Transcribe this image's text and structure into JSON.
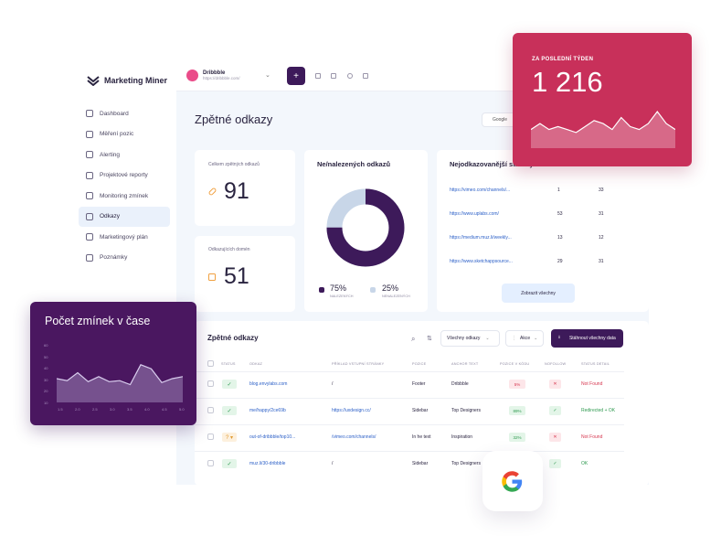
{
  "brand": {
    "name": "Marketing Miner"
  },
  "sidebar": {
    "items": [
      {
        "label": "Dashboard",
        "icon": "dashboard-icon",
        "active": false
      },
      {
        "label": "Měření pozic",
        "icon": "position-icon",
        "active": false
      },
      {
        "label": "Alerting",
        "icon": "bell-icon",
        "active": false
      },
      {
        "label": "Projektové reporty",
        "icon": "report-icon",
        "active": false
      },
      {
        "label": "Monitoring zmínek",
        "icon": "chat-icon",
        "active": false
      },
      {
        "label": "Odkazy",
        "icon": "link-icon",
        "active": true
      },
      {
        "label": "Marketingový plán",
        "icon": "calendar-icon",
        "active": false
      },
      {
        "label": "Poznámky",
        "icon": "note-icon",
        "active": false
      }
    ]
  },
  "topbar": {
    "project_name": "Dribbble",
    "project_url": "https://dribbble.com/",
    "add_label": "+"
  },
  "page": {
    "title": "Zpětné odkazy",
    "engine": "Google"
  },
  "stats": {
    "total_label": "Celkem zpětných odkazů",
    "total_value": "91",
    "domains_label": "Odkazujících domén",
    "domains_value": "51"
  },
  "donut": {
    "title": "Ne/nalezených odkazů",
    "found_pct": "75%",
    "found_label": "NALEZENÝCH",
    "notfound_pct": "25%",
    "notfound_label": "NENALEZENÝCH",
    "found_fraction": 0.75,
    "colors": {
      "found": "#3d1a5a",
      "notfound": "#c8d6e8"
    }
  },
  "top_links": {
    "title": "Nejodkazovanější stránky",
    "rows": [
      {
        "url": "https://vimeo.com/channels/...",
        "a": "1",
        "b": "33"
      },
      {
        "url": "https://www.uplabs.com/",
        "a": "53",
        "b": "31"
      },
      {
        "url": "https://medium.muz.li/weekly...",
        "a": "13",
        "b": "12"
      },
      {
        "url": "https://www.sketchappsource...",
        "a": "29",
        "b": "31"
      }
    ],
    "show_all": "Zobrazit všechny"
  },
  "backlinks": {
    "title": "Zpětné odkazy",
    "filter_all": "Všechny odkazy",
    "filter_more": "Akce",
    "download": "Stáhnout všechny data",
    "headers": [
      "STATUS",
      "ODKAZ",
      "PŘÍKLAD VSTUPNÍ STRÁNKY",
      "POZICE",
      "ANCHOR TEXT",
      "POZICE V KÓDU",
      "NOFOLLOW",
      "STATUS DETAIL"
    ],
    "rows": [
      {
        "status": "ok",
        "status_glyph": "✓",
        "link": "blog.envylabs.com",
        "entry": "/",
        "position": "Footer",
        "anchor": "Dribbble",
        "code_pos": "5%",
        "code_tone": "red",
        "nofollow": "✕",
        "nofollow_tone": "red",
        "detail": "Not Found",
        "detail_tone": "red"
      },
      {
        "status": "ok",
        "status_glyph": "✓",
        "link": "me/happy/2ce69b",
        "entry": "https://uxdesign.cc/",
        "position": "Sidebar",
        "anchor": "Top Designers",
        "code_pos": "89%",
        "code_tone": "green",
        "nofollow": "✓",
        "nofollow_tone": "green",
        "detail": "Redirected + OK",
        "detail_tone": "green"
      },
      {
        "status": "unknown",
        "status_glyph": "? ▾",
        "link": "out-of-dribbble/top10...",
        "entry": "/vimeo.com/channels/",
        "position": "In he text",
        "anchor": "Inspiration",
        "code_pos": "32%",
        "code_tone": "green",
        "nofollow": "✕",
        "nofollow_tone": "red",
        "detail": "Not Found",
        "detail_tone": "red"
      },
      {
        "status": "ok",
        "status_glyph": "✓",
        "link": "muz.li/30-dribbble",
        "entry": "/",
        "position": "Sidebar",
        "anchor": "Top Designers",
        "code_pos": "",
        "code_tone": "none",
        "nofollow": "✓",
        "nofollow_tone": "green",
        "detail": "OK",
        "detail_tone": "green"
      }
    ]
  },
  "week_card": {
    "label": "ZA POSLEDNÍ TÝDEN",
    "value": "1 216",
    "series": [
      5,
      7,
      5,
      6,
      5,
      4,
      6,
      8,
      7,
      5,
      9,
      6,
      5,
      7,
      11,
      7,
      5
    ],
    "color": "#c8305a"
  },
  "mentions_card": {
    "title": "Počet zmínek v čase",
    "y_ticks": [
      "60",
      "50",
      "40",
      "30",
      "20",
      "10"
    ],
    "x_ticks": [
      "1.5",
      "2.0",
      "2.5",
      "3.0",
      "3.5",
      "4.0",
      "4.5",
      "5.0"
    ],
    "series": [
      24,
      22,
      30,
      21,
      26,
      21,
      22,
      18,
      38,
      34,
      20,
      24,
      26
    ],
    "color": "#4a1760"
  }
}
